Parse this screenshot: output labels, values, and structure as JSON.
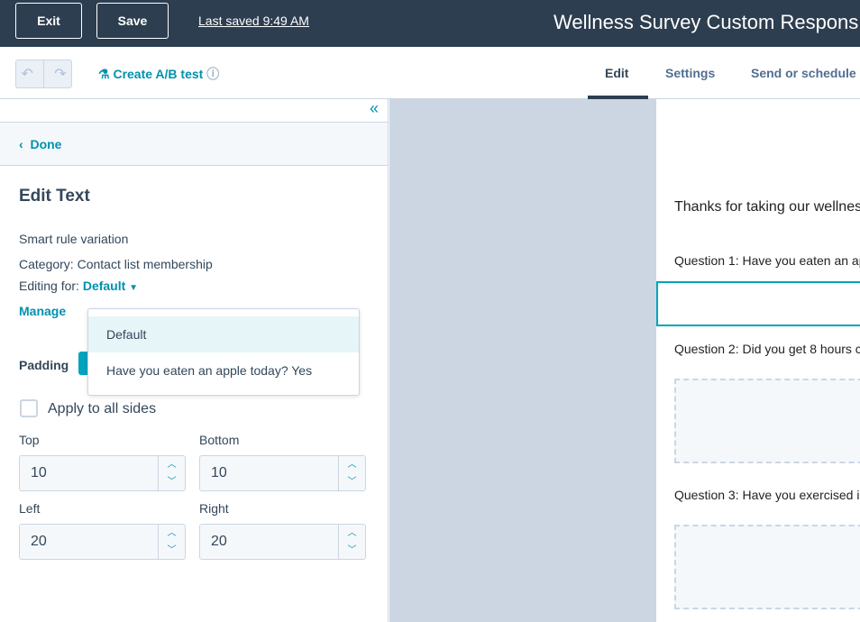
{
  "header": {
    "exit": "Exit",
    "save": "Save",
    "last_saved": "Last saved 9:49 AM",
    "title": "Wellness Survey Custom Respons"
  },
  "toolbar": {
    "ab_test": "Create A/B test",
    "tabs": [
      "Edit",
      "Settings",
      "Send or schedule"
    ]
  },
  "sidebar": {
    "done": "Done",
    "heading": "Edit Text",
    "smart_rule": "Smart rule variation",
    "category_label": "Category:",
    "category_value": "Contact list membership",
    "editing_for_label": "Editing for:",
    "editing_for_value": "Default",
    "manage": "Manage",
    "dropdown": [
      "Default",
      "Have you eaten an apple today? Yes"
    ],
    "padding": "Padding",
    "apply_all": "Apply to all sides",
    "fields": [
      {
        "label": "Top",
        "value": 10
      },
      {
        "label": "Bottom",
        "value": 10
      },
      {
        "label": "Left",
        "value": 20
      },
      {
        "label": "Right",
        "value": 20
      }
    ]
  },
  "preview": {
    "intro": "Thanks for taking our wellnes",
    "questions": [
      "Question 1: Have you eaten an ap",
      "Question 2: Did you get 8 hours c",
      "Question 3: Have you exercised i"
    ]
  }
}
